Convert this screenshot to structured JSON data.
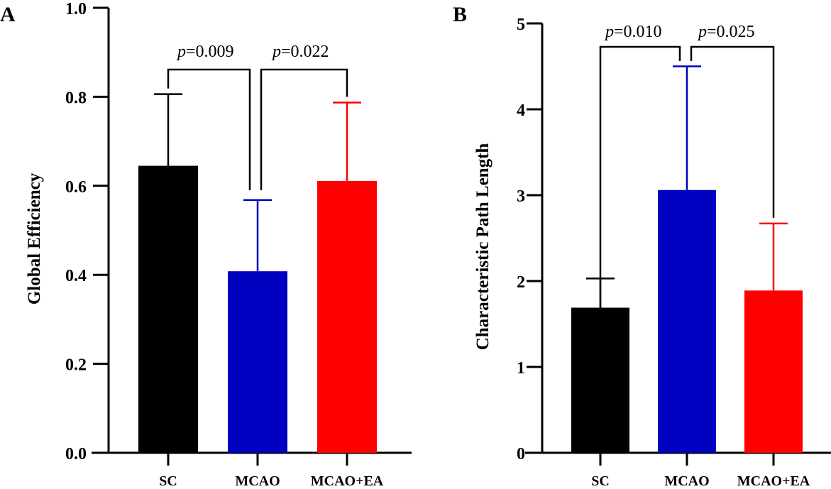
{
  "chart_data": [
    {
      "type": "bar",
      "panel": "A",
      "title": "",
      "xlabel": "",
      "ylabel": "Global Efficiency",
      "ylim": [
        0,
        1.0
      ],
      "yticks": [
        "0.0",
        "0.2",
        "0.4",
        "0.6",
        "0.8",
        "1.0"
      ],
      "ytick_values": [
        0,
        0.2,
        0.4,
        0.6,
        0.8,
        1.0
      ],
      "categories": [
        "SC",
        "MCAO",
        "MCAO+EA"
      ],
      "values": [
        0.645,
        0.408,
        0.611
      ],
      "error_upper": [
        0.806,
        0.568,
        0.787
      ],
      "colors": [
        "#000000",
        "#0000C0",
        "#FF0000"
      ],
      "significance": [
        {
          "from": 0,
          "to": 1,
          "label_prefix": "p",
          "label_value": "=0.009"
        },
        {
          "from": 1,
          "to": 2,
          "label_prefix": "p",
          "label_value": "=0.022"
        }
      ],
      "grid": false
    },
    {
      "type": "bar",
      "panel": "B",
      "title": "",
      "xlabel": "",
      "ylabel": "Characteristic Path Length",
      "ylim": [
        0,
        5
      ],
      "yticks": [
        "0",
        "1",
        "2",
        "3",
        "4",
        "5"
      ],
      "ytick_values": [
        0,
        1,
        2,
        3,
        4,
        5
      ],
      "categories": [
        "SC",
        "MCAO",
        "MCAO+EA"
      ],
      "values": [
        1.69,
        3.06,
        1.89
      ],
      "error_upper": [
        2.03,
        4.5,
        2.67
      ],
      "colors": [
        "#000000",
        "#0000C0",
        "#FF0000"
      ],
      "significance": [
        {
          "from": 0,
          "to": 1,
          "label_prefix": "p",
          "label_value": "=0.010"
        },
        {
          "from": 1,
          "to": 2,
          "label_prefix": "p",
          "label_value": "=0.025"
        }
      ],
      "grid": false
    }
  ]
}
